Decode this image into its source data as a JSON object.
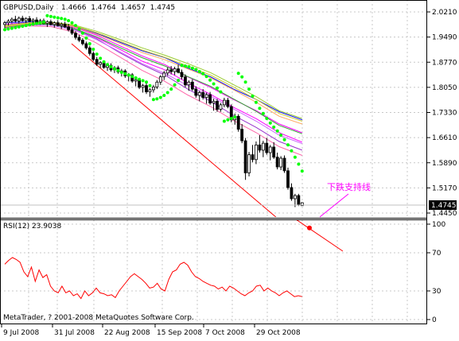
{
  "chart_data": {
    "type": "candlestick",
    "main": {
      "symbol_label": "GBPUSD,Daily",
      "ohlc_label": "1.4666  1.4764  1.4657  1.4745",
      "open": 1.4666,
      "high": 1.4764,
      "low": 1.4657,
      "close": 1.4745,
      "price_badge": "1.4745",
      "y_ticks": [
        "2.0210",
        "1.9490",
        "1.8770",
        "1.8050",
        "1.7330",
        "1.6610",
        "1.5890",
        "1.5170",
        "1.4450"
      ],
      "ylim": [
        1.445,
        2.021
      ],
      "annotation": "下跌支持线",
      "trendline": {
        "from": [
          "~16 Jul 2008",
          1.93
        ],
        "to": [
          "~23 Nov 2008",
          1.35
        ]
      },
      "candles": [
        [
          1.985,
          1.995,
          1.975,
          1.99
        ],
        [
          1.99,
          2.0,
          1.982,
          1.995
        ],
        [
          1.995,
          2.005,
          1.988,
          2.0
        ],
        [
          2.0,
          2.01,
          1.99,
          1.995
        ],
        [
          1.995,
          2.008,
          1.988,
          2.003
        ],
        [
          2.003,
          2.01,
          1.993,
          1.996
        ],
        [
          1.996,
          2.006,
          1.989,
          2.002
        ],
        [
          2.002,
          2.009,
          1.992,
          1.994
        ],
        [
          1.994,
          2.003,
          1.986,
          1.998
        ],
        [
          1.998,
          2.006,
          1.989,
          1.991
        ],
        [
          1.991,
          2.001,
          1.984,
          1.996
        ],
        [
          1.996,
          2.002,
          1.985,
          1.988
        ],
        [
          1.988,
          1.997,
          1.978,
          1.993
        ],
        [
          1.993,
          1.999,
          1.982,
          1.985
        ],
        [
          1.985,
          1.994,
          1.976,
          1.99
        ],
        [
          1.99,
          1.997,
          1.979,
          1.982
        ],
        [
          1.982,
          1.991,
          1.972,
          1.986
        ],
        [
          1.986,
          1.993,
          1.975,
          1.978
        ],
        [
          1.978,
          1.987,
          1.965,
          1.97
        ],
        [
          1.97,
          1.977,
          1.955,
          1.96
        ],
        [
          1.96,
          1.966,
          1.942,
          1.948
        ],
        [
          1.948,
          1.955,
          1.935,
          1.94
        ],
        [
          1.94,
          1.946,
          1.925,
          1.93
        ],
        [
          1.93,
          1.936,
          1.913,
          1.918
        ],
        [
          1.918,
          1.924,
          1.896,
          1.902
        ],
        [
          1.902,
          1.908,
          1.88,
          1.885
        ],
        [
          1.885,
          1.892,
          1.866,
          1.871
        ],
        [
          1.871,
          1.88,
          1.86,
          1.876
        ],
        [
          1.876,
          1.882,
          1.858,
          1.862
        ],
        [
          1.862,
          1.872,
          1.852,
          1.868
        ],
        [
          1.868,
          1.874,
          1.85,
          1.855
        ],
        [
          1.855,
          1.866,
          1.846,
          1.861
        ],
        [
          1.861,
          1.867,
          1.844,
          1.849
        ],
        [
          1.849,
          1.858,
          1.836,
          1.852
        ],
        [
          1.852,
          1.857,
          1.832,
          1.838
        ],
        [
          1.838,
          1.846,
          1.822,
          1.841
        ],
        [
          1.841,
          1.846,
          1.818,
          1.823
        ],
        [
          1.823,
          1.832,
          1.808,
          1.827
        ],
        [
          1.827,
          1.831,
          1.8,
          1.805
        ],
        [
          1.805,
          1.815,
          1.79,
          1.81
        ],
        [
          1.81,
          1.816,
          1.786,
          1.792
        ],
        [
          1.792,
          1.803,
          1.778,
          1.798
        ],
        [
          1.798,
          1.812,
          1.79,
          1.806
        ],
        [
          1.806,
          1.826,
          1.8,
          1.82
        ],
        [
          1.82,
          1.84,
          1.812,
          1.835
        ],
        [
          1.835,
          1.852,
          1.826,
          1.846
        ],
        [
          1.846,
          1.862,
          1.838,
          1.855
        ],
        [
          1.855,
          1.866,
          1.842,
          1.85
        ],
        [
          1.85,
          1.864,
          1.84,
          1.858
        ],
        [
          1.858,
          1.87,
          1.845,
          1.848
        ],
        [
          1.848,
          1.856,
          1.828,
          1.835
        ],
        [
          1.835,
          1.842,
          1.805,
          1.812
        ],
        [
          1.812,
          1.825,
          1.795,
          1.82
        ],
        [
          1.82,
          1.828,
          1.795,
          1.8
        ],
        [
          1.8,
          1.808,
          1.775,
          1.782
        ],
        [
          1.782,
          1.795,
          1.765,
          1.79
        ],
        [
          1.79,
          1.8,
          1.77,
          1.776
        ],
        [
          1.776,
          1.79,
          1.758,
          1.784
        ],
        [
          1.784,
          1.792,
          1.755,
          1.76
        ],
        [
          1.76,
          1.772,
          1.738,
          1.765
        ],
        [
          1.765,
          1.772,
          1.735,
          1.742
        ],
        [
          1.742,
          1.76,
          1.735,
          1.755
        ],
        [
          1.755,
          1.775,
          1.748,
          1.768
        ],
        [
          1.768,
          1.775,
          1.745,
          1.75
        ],
        [
          1.75,
          1.756,
          1.705,
          1.712
        ],
        [
          1.712,
          1.73,
          1.698,
          1.722
        ],
        [
          1.722,
          1.728,
          1.678,
          1.685
        ],
        [
          1.685,
          1.7,
          1.645,
          1.652
        ],
        [
          1.652,
          1.66,
          1.54,
          1.56
        ],
        [
          1.56,
          1.62,
          1.55,
          1.612
        ],
        [
          1.612,
          1.64,
          1.59,
          1.598
        ],
        [
          1.598,
          1.65,
          1.585,
          1.64
        ],
        [
          1.64,
          1.668,
          1.618,
          1.625
        ],
        [
          1.625,
          1.652,
          1.605,
          1.645
        ],
        [
          1.645,
          1.66,
          1.612,
          1.618
        ],
        [
          1.618,
          1.64,
          1.596,
          1.634
        ],
        [
          1.634,
          1.648,
          1.6,
          1.605
        ],
        [
          1.605,
          1.618,
          1.57,
          1.577
        ],
        [
          1.577,
          1.608,
          1.568,
          1.602
        ],
        [
          1.602,
          1.61,
          1.56,
          1.566
        ],
        [
          1.566,
          1.575,
          1.512,
          1.518
        ],
        [
          1.518,
          1.53,
          1.48,
          1.486
        ],
        [
          1.486,
          1.5,
          1.462,
          1.495
        ],
        [
          1.495,
          1.5,
          1.465,
          1.47
        ],
        [
          1.466,
          1.476,
          1.4657,
          1.4745
        ]
      ],
      "parabolic_sar": [
        1.97,
        1.972,
        1.974,
        1.976,
        1.978,
        1.98,
        1.982,
        1.984,
        1.986,
        1.988,
        1.99,
        1.992,
        2.01,
        2.008,
        2.006,
        2.004,
        2.002,
        2.0,
        1.996,
        1.99,
        1.982,
        1.972,
        1.96,
        1.946,
        1.93,
        1.914,
        1.9,
        1.888,
        1.878,
        1.87,
        1.864,
        1.858,
        1.853,
        1.848,
        1.844,
        1.84,
        1.836,
        1.832,
        1.828,
        1.824,
        1.82,
        1.81,
        1.77,
        1.772,
        1.776,
        1.782,
        1.79,
        1.8,
        1.812,
        1.825,
        1.868,
        1.866,
        1.864,
        1.86,
        1.856,
        1.85,
        1.844,
        1.836,
        1.826,
        1.815,
        1.803,
        1.792,
        1.708,
        1.712,
        1.716,
        1.72,
        1.845,
        1.835,
        1.82,
        1.8,
        1.78,
        1.762,
        1.745,
        1.73,
        1.716,
        1.703,
        1.691,
        1.68,
        1.668,
        1.655,
        1.64,
        1.623,
        1.605,
        1.585,
        1.565
      ],
      "moving_averages": [
        {
          "color": "#0000ff",
          "values": [
            1.99,
            1.992,
            1.99,
            1.98,
            1.96,
            1.935,
            1.91,
            1.89,
            1.86,
            1.835,
            1.8,
            1.77,
            1.735,
            1.712
          ]
        },
        {
          "color": "#ff00ff",
          "values": [
            1.985,
            1.99,
            1.989,
            1.978,
            1.955,
            1.925,
            1.895,
            1.87,
            1.835,
            1.805,
            1.77,
            1.738,
            1.7,
            1.675
          ]
        },
        {
          "color": "#ff00ff",
          "values": [
            1.98,
            1.988,
            1.987,
            1.975,
            1.948,
            1.915,
            1.88,
            1.855,
            1.818,
            1.785,
            1.748,
            1.715,
            1.675,
            1.648
          ]
        },
        {
          "color": "#9933cc",
          "values": [
            1.978,
            1.986,
            1.986,
            1.973,
            1.945,
            1.905,
            1.87,
            1.84,
            1.8,
            1.765,
            1.725,
            1.69,
            1.65,
            1.625
          ]
        },
        {
          "color": "#99cc33",
          "values": [
            1.982,
            1.99,
            1.992,
            1.984,
            1.966,
            1.943,
            1.918,
            1.897,
            1.873,
            1.847,
            1.813,
            1.778,
            1.738,
            1.716
          ]
        },
        {
          "color": "#cccc33",
          "values": [
            1.98,
            1.989,
            1.991,
            1.982,
            1.962,
            1.938,
            1.912,
            1.891,
            1.866,
            1.84,
            1.806,
            1.77,
            1.73,
            1.708
          ]
        },
        {
          "color": "#ffaa66",
          "values": [
            1.978,
            1.987,
            1.989,
            1.979,
            1.958,
            1.932,
            1.905,
            1.884,
            1.858,
            1.832,
            1.798,
            1.762,
            1.722,
            1.7
          ]
        },
        {
          "color": "#33aa33",
          "values": [
            1.976,
            1.985,
            1.986,
            1.974,
            1.95,
            1.92,
            1.89,
            1.866,
            1.836,
            1.808,
            1.772,
            1.736,
            1.696,
            1.672
          ]
        },
        {
          "color": "#cc66ff",
          "values": [
            1.975,
            1.983,
            1.983,
            1.97,
            1.942,
            1.908,
            1.873,
            1.845,
            1.81,
            1.78,
            1.743,
            1.708,
            1.668,
            1.644
          ]
        },
        {
          "color": "#ff66aa",
          "values": [
            1.974,
            1.981,
            1.979,
            1.964,
            1.932,
            1.893,
            1.854,
            1.822,
            1.783,
            1.75,
            1.71,
            1.675,
            1.635,
            1.61
          ]
        }
      ]
    },
    "rsi": {
      "label": "RSI(12) 23.9038",
      "period": 12,
      "value": 23.9038,
      "y_ticks": [
        "100",
        "70",
        "30",
        "0"
      ],
      "ylim": [
        0,
        100
      ],
      "trendline": {
        "from": [
          "~23 Nov 2008",
          100
        ],
        "to": [
          "~2 Dec 2008",
          70
        ]
      },
      "marker": {
        "x": "~26 Nov 2008",
        "y": 96
      },
      "values": [
        58,
        62,
        65,
        63,
        60,
        50,
        45,
        55,
        40,
        52,
        44,
        47,
        35,
        30,
        28,
        35,
        28,
        30,
        25,
        27,
        22,
        30,
        25,
        28,
        33,
        28,
        27,
        25,
        26,
        23,
        30,
        35,
        40,
        45,
        48,
        45,
        42,
        38,
        33,
        34,
        38,
        32,
        30,
        42,
        50,
        52,
        58,
        60,
        57,
        50,
        45,
        43,
        40,
        38,
        36,
        35,
        32,
        34,
        30,
        35,
        33,
        30,
        27,
        25,
        28,
        30,
        35,
        36,
        30,
        33,
        30,
        28,
        25,
        28,
        30,
        27,
        24,
        25,
        24
      ],
      "watermark": "MetaTrader, ? 2001-2008 MetaQuotes Software Corp."
    },
    "x_ticks": [
      "9 Jul 2008",
      "31 Jul 2008",
      "22 Aug 2008",
      "15 Sep 2008",
      "7 Oct 2008",
      "29 Oct 2008"
    ]
  }
}
